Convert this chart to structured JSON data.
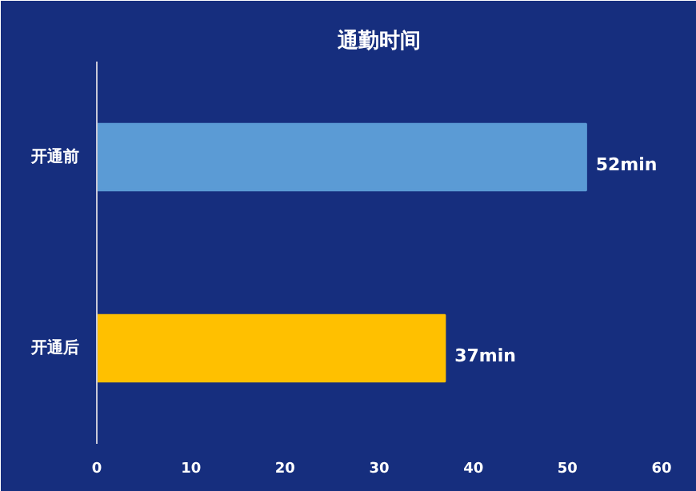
{
  "chart_data": {
    "type": "bar",
    "orientation": "horizontal",
    "title": "通勤时间",
    "categories": [
      "开通前",
      "开通后"
    ],
    "values": [
      52,
      37
    ],
    "colors": [
      "#5b9bd5",
      "#ffc000"
    ],
    "value_labels": [
      "52min",
      "37min"
    ],
    "xlim": [
      0,
      60
    ],
    "xticks": [
      0,
      10,
      20,
      30,
      40,
      50,
      60
    ],
    "grid": false
  }
}
